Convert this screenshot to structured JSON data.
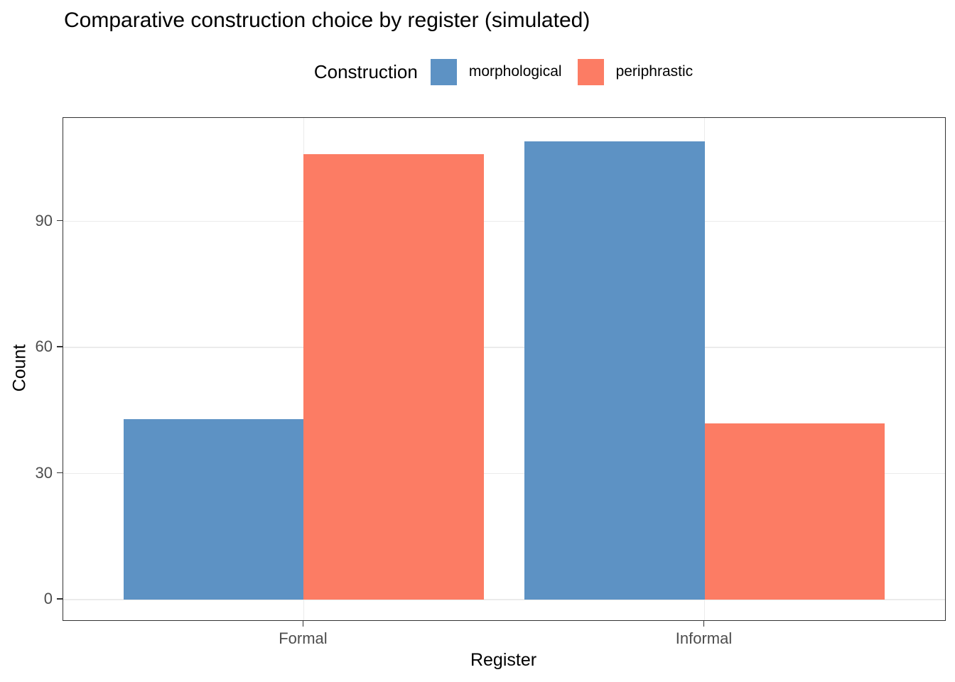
{
  "title": "Comparative construction choice by register (simulated)",
  "legend": {
    "title": "Construction",
    "items": [
      {
        "label": "morphological",
        "color": "#5D92C4"
      },
      {
        "label": "periphrastic",
        "color": "#FC7C64"
      }
    ]
  },
  "chart_data": {
    "type": "bar",
    "title": "Comparative construction choice by register (simulated)",
    "categories": [
      "Formal",
      "Informal"
    ],
    "series": [
      {
        "name": "morphological",
        "color": "#5D92C4",
        "values": [
          43,
          109
        ]
      },
      {
        "name": "periphrastic",
        "color": "#FC7C64",
        "values": [
          106,
          42
        ]
      }
    ],
    "xlabel": "Register",
    "ylabel": "Count",
    "yticks": [
      0,
      30,
      60,
      90
    ],
    "ylim": [
      0,
      114.6
    ],
    "grid": "horizontal major gridlines at yticks; vertical gridlines at category centers",
    "legend_position": "top-center",
    "bar_layout": "dodged, bar group width 0.9 of category slot"
  },
  "colors": {
    "background": "#FFFFFF",
    "panel_border": "#333333",
    "gridline": "#EBEBEB",
    "tick_label": "#4D4D4D",
    "axis_title": "#000000",
    "series_morphological": "#5D92C4",
    "series_periphrastic": "#FC7C64"
  }
}
